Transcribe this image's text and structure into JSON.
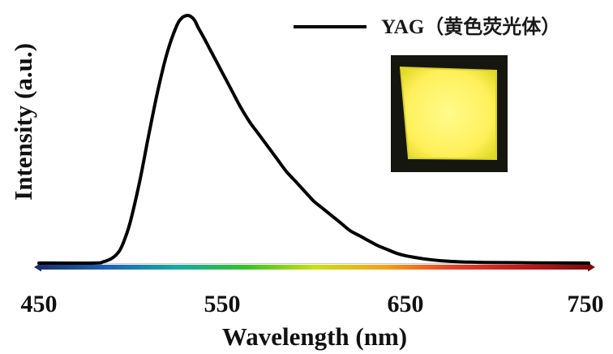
{
  "chart_data": {
    "type": "line",
    "title": "",
    "xlabel": "Wavelength (nm)",
    "ylabel": "Intensity (a.u.)",
    "xlim": [
      450,
      750
    ],
    "ylim": [
      0,
      1.0
    ],
    "x_ticks": [
      "450",
      "550",
      "650",
      "750"
    ],
    "grid": false,
    "legend_position": "top-right",
    "series": [
      {
        "name": "YAG（黄色荧光体）",
        "color": "#000000",
        "x": [
          450,
          480,
          485,
          490,
          494,
          497,
          500,
          505,
          510,
          515,
          520,
          525,
          528,
          531,
          533,
          535,
          537,
          540,
          545,
          550,
          555,
          560,
          565,
          570,
          575,
          580,
          585,
          590,
          595,
          600,
          605,
          610,
          615,
          620,
          625,
          630,
          635,
          640,
          645,
          650,
          660,
          670,
          680,
          690,
          700,
          720,
          750
        ],
        "y": [
          0.0,
          0.0,
          0.005,
          0.02,
          0.05,
          0.1,
          0.17,
          0.33,
          0.52,
          0.7,
          0.85,
          0.955,
          0.99,
          1.0,
          0.995,
          0.98,
          0.95,
          0.91,
          0.84,
          0.77,
          0.7,
          0.63,
          0.57,
          0.52,
          0.47,
          0.42,
          0.37,
          0.33,
          0.29,
          0.25,
          0.22,
          0.19,
          0.16,
          0.13,
          0.11,
          0.09,
          0.07,
          0.055,
          0.04,
          0.03,
          0.017,
          0.009,
          0.005,
          0.003,
          0.002,
          0.001,
          0.0
        ]
      }
    ],
    "colors": {
      "line": "#000000",
      "axis": "#c8c8c8",
      "spectrum": [
        "#1c2f6e",
        "#1f63b8",
        "#1aa9a0",
        "#38c02a",
        "#c8e014",
        "#f2a41a",
        "#e9402a",
        "#c81818",
        "#7d0c0c"
      ]
    },
    "inset_image": {
      "caption": "",
      "colors": {
        "frame": "#15160f",
        "glow": "#fff46a",
        "edge": "#d9d329"
      }
    }
  }
}
